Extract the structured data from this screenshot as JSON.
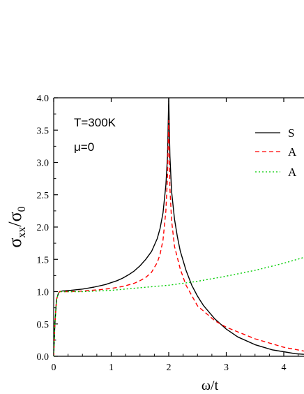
{
  "chart_data": {
    "type": "line",
    "xlabel": "ω/t",
    "ylabel": {
      "base": "σ",
      "sub": "xx",
      "slash": "/",
      "base2": "σ",
      "sub2": "0"
    },
    "xlim": [
      0,
      4.35
    ],
    "ylim": [
      0,
      4.0
    ],
    "xticks": [
      0,
      1,
      2,
      3,
      4
    ],
    "xtick_labels": [
      "0",
      "1",
      "2",
      "3",
      "4"
    ],
    "yticks": [
      0,
      0.5,
      1.0,
      1.5,
      2.0,
      2.5,
      3.0,
      3.5,
      4.0
    ],
    "ytick_labels": [
      "0.0",
      "0.5",
      "1.0",
      "1.5",
      "2.0",
      "2.5",
      "3.0",
      "3.5",
      "4.0"
    ],
    "annotations": [
      "T=300K",
      "μ=0"
    ],
    "legend_position": "top-right",
    "series": [
      {
        "name": "S",
        "color": "#000000",
        "style": "solid",
        "x": [
          0,
          0.02,
          0.05,
          0.08,
          0.1,
          0.15,
          0.3,
          0.5,
          0.7,
          0.9,
          1.0,
          1.1,
          1.2,
          1.3,
          1.4,
          1.5,
          1.6,
          1.7,
          1.8,
          1.85,
          1.9,
          1.95,
          1.98,
          2.0,
          2.02,
          2.05,
          2.1,
          2.15,
          2.2,
          2.3,
          2.4,
          2.5,
          2.6,
          2.8,
          3.0,
          3.2,
          3.5,
          3.8,
          4.0,
          4.2,
          4.35
        ],
        "y": [
          0,
          0.5,
          0.88,
          0.97,
          1.0,
          1.01,
          1.02,
          1.04,
          1.07,
          1.11,
          1.14,
          1.17,
          1.21,
          1.26,
          1.32,
          1.4,
          1.5,
          1.62,
          1.82,
          1.98,
          2.22,
          2.65,
          3.1,
          4.0,
          3.1,
          2.55,
          2.12,
          1.85,
          1.63,
          1.33,
          1.1,
          0.93,
          0.79,
          0.58,
          0.42,
          0.3,
          0.18,
          0.1,
          0.07,
          0.04,
          0.03
        ]
      },
      {
        "name": "A",
        "color": "#ff0000",
        "style": "dashed",
        "x": [
          0,
          0.02,
          0.05,
          0.08,
          0.1,
          0.15,
          0.3,
          0.5,
          0.8,
          1.0,
          1.2,
          1.4,
          1.5,
          1.6,
          1.7,
          1.8,
          1.85,
          1.9,
          1.95,
          1.98,
          2.0,
          2.02,
          2.05,
          2.1,
          2.2,
          2.3,
          2.5,
          2.8,
          3.0,
          3.5,
          4.0,
          4.35
        ],
        "y": [
          0,
          0.5,
          0.88,
          0.97,
          1.0,
          1.0,
          1.0,
          1.01,
          1.03,
          1.05,
          1.08,
          1.13,
          1.17,
          1.22,
          1.3,
          1.45,
          1.58,
          1.8,
          2.25,
          2.8,
          3.65,
          2.6,
          2.1,
          1.7,
          1.35,
          1.1,
          0.78,
          0.55,
          0.45,
          0.27,
          0.14,
          0.08
        ]
      },
      {
        "name": "A",
        "color": "#00cc00",
        "style": "dotted",
        "x": [
          0,
          0.02,
          0.05,
          0.08,
          0.1,
          0.5,
          1.0,
          1.5,
          2.0,
          2.5,
          3.0,
          3.5,
          4.0,
          4.35
        ],
        "y": [
          0,
          0.5,
          0.88,
          0.97,
          1.0,
          1.0,
          1.02,
          1.06,
          1.1,
          1.16,
          1.24,
          1.33,
          1.44,
          1.53
        ]
      }
    ]
  }
}
